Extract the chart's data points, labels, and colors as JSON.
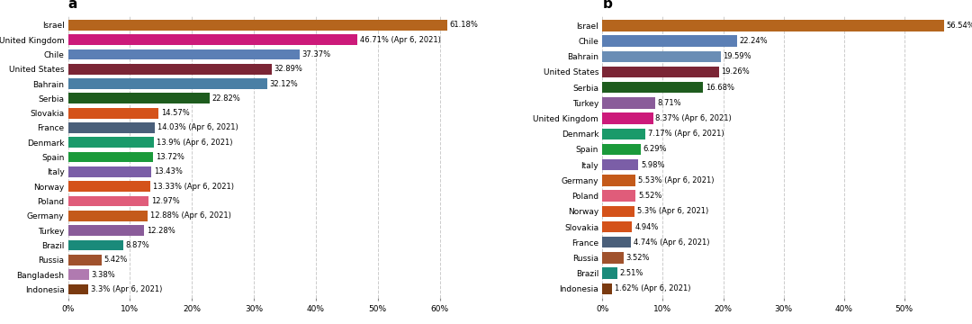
{
  "chart_a": {
    "title": "a",
    "countries": [
      "Israel",
      "United Kingdom",
      "Chile",
      "United States",
      "Bahrain",
      "Serbia",
      "Slovakia",
      "France",
      "Denmark",
      "Spain",
      "Italy",
      "Norway",
      "Poland",
      "Germany",
      "Turkey",
      "Brazil",
      "Russia",
      "Bangladesh",
      "Indonesia"
    ],
    "values": [
      61.18,
      46.71,
      37.37,
      32.89,
      32.12,
      22.82,
      14.57,
      14.03,
      13.9,
      13.72,
      13.43,
      13.33,
      12.97,
      12.88,
      12.28,
      8.87,
      5.42,
      3.38,
      3.3
    ],
    "labels": [
      "61.18%",
      "46.71% (Apr 6, 2021)",
      "37.37%",
      "32.89%",
      "32.12%",
      "22.82%",
      "14.57%",
      "14.03% (Apr 6, 2021)",
      "13.9% (Apr 6, 2021)",
      "13.72%",
      "13.43%",
      "13.33% (Apr 6, 2021)",
      "12.97%",
      "12.88% (Apr 6, 2021)",
      "12.28%",
      "8.87%",
      "5.42%",
      "3.38%",
      "3.3% (Apr 6, 2021)"
    ],
    "colors": [
      "#b5651d",
      "#cc1a7a",
      "#5b7fb5",
      "#7b2535",
      "#4a7fa5",
      "#1e5c1e",
      "#d4521a",
      "#4a5f7a",
      "#1a9a6a",
      "#1a9a3a",
      "#7b5ea7",
      "#d4521a",
      "#e05c7a",
      "#c45a1a",
      "#8a5c9a",
      "#1a8a7a",
      "#a0522d",
      "#b07ab0",
      "#7a3a10"
    ],
    "xlim": 65,
    "xticks": [
      0,
      10,
      20,
      30,
      40,
      50,
      60
    ]
  },
  "chart_b": {
    "title": "b",
    "countries": [
      "Israel",
      "Chile",
      "Bahrain",
      "United States",
      "Serbia",
      "Turkey",
      "United Kingdom",
      "Denmark",
      "Spain",
      "Italy",
      "Germany",
      "Poland",
      "Norway",
      "Slovakia",
      "France",
      "Russia",
      "Brazil",
      "Indonesia"
    ],
    "values": [
      56.54,
      22.24,
      19.59,
      19.26,
      16.68,
      8.71,
      8.37,
      7.17,
      6.29,
      5.98,
      5.53,
      5.52,
      5.3,
      4.94,
      4.74,
      3.52,
      2.51,
      1.62
    ],
    "labels": [
      "56.54%",
      "22.24%",
      "19.59%",
      "19.26%",
      "16.68%",
      "8.71%",
      "8.37% (Apr 6, 2021)",
      "7.17% (Apr 6, 2021)",
      "6.29%",
      "5.98%",
      "5.53% (Apr 6, 2021)",
      "5.52%",
      "5.3% (Apr 6, 2021)",
      "4.94%",
      "4.74% (Apr 6, 2021)",
      "3.52%",
      "2.51%",
      "1.62% (Apr 6, 2021)"
    ],
    "colors": [
      "#b5651d",
      "#5b7fb5",
      "#6a8db5",
      "#7b2535",
      "#1e5c1e",
      "#8a5c9a",
      "#cc1a7a",
      "#1a9a6a",
      "#1a9a3a",
      "#7b5ea7",
      "#c45a1a",
      "#e05c7a",
      "#d4521a",
      "#d4521a",
      "#4a5f7a",
      "#a0522d",
      "#1a8a7a",
      "#7a3a10"
    ],
    "xlim": 58,
    "xticks": [
      0,
      10,
      20,
      30,
      40,
      50
    ]
  },
  "background_color": "#ffffff",
  "bar_height": 0.72,
  "fontsize": 6.5,
  "label_fontsize": 6.0
}
